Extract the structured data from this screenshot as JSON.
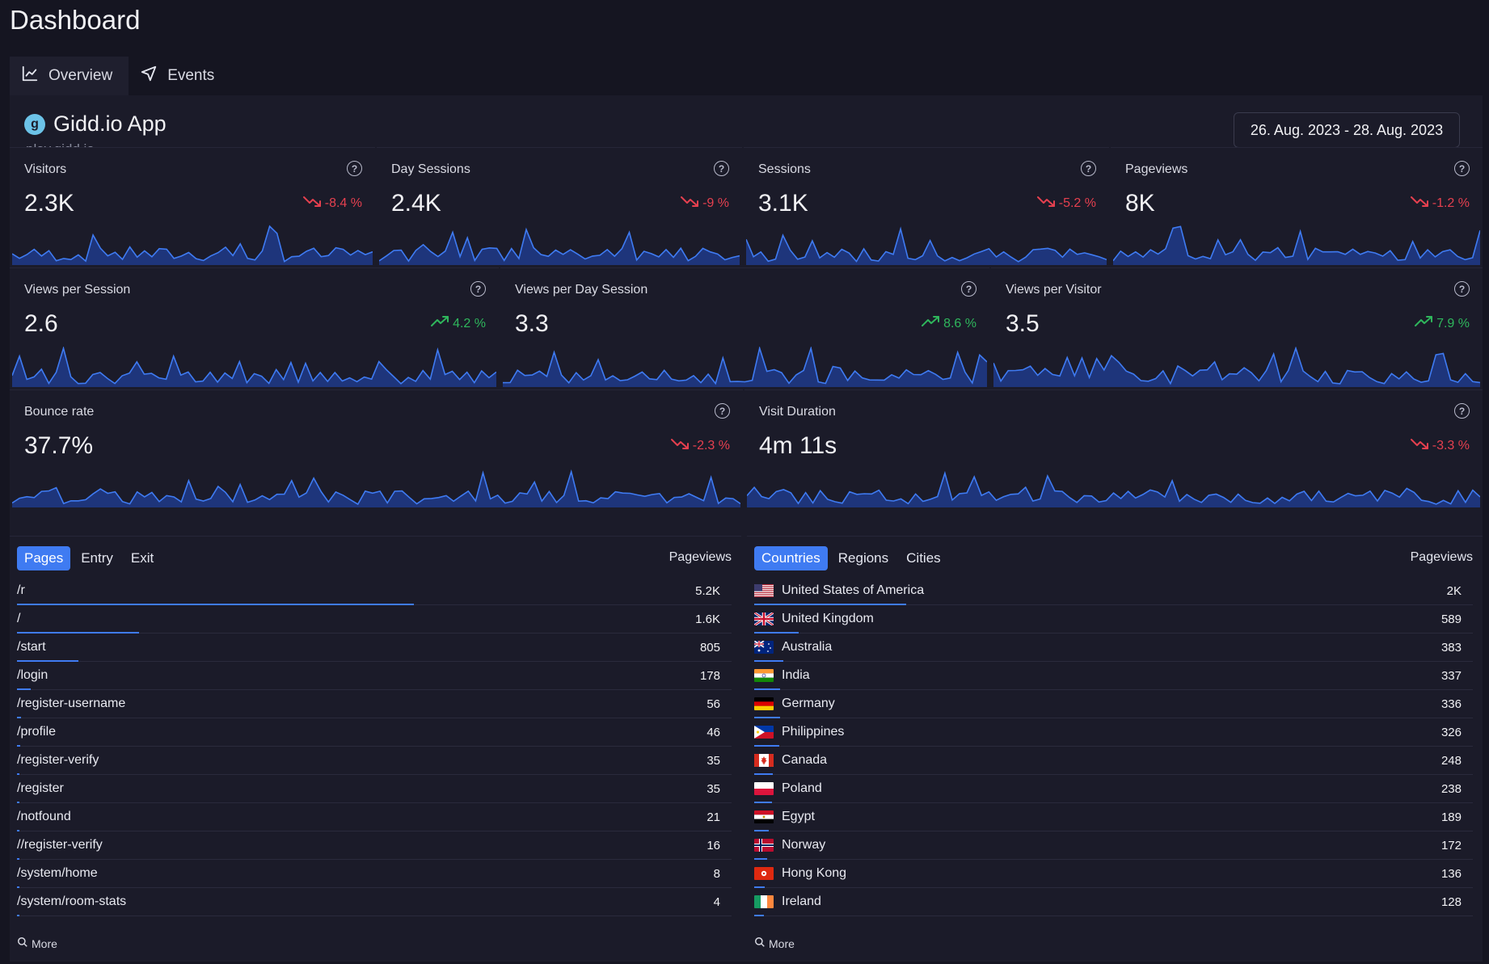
{
  "page": {
    "title": "Dashboard"
  },
  "tabs": [
    {
      "label": "Overview",
      "icon": "line-chart-icon",
      "active": true
    },
    {
      "label": "Events",
      "icon": "send-icon",
      "active": false
    }
  ],
  "app": {
    "name": "Gidd.io App",
    "domain": "play.gidd.io",
    "date_range": "26. Aug. 2023 - 28. Aug. 2023"
  },
  "colors": {
    "accent": "#3f7bf2",
    "down": "#e5404f",
    "up": "#2fb65c",
    "background": "#151521",
    "panel": "#1b1b29",
    "spark_fill": "#1e3a8a"
  },
  "stats": [
    {
      "label": "Visitors",
      "value": "2.3K",
      "change": "-8.4 %",
      "direction": "down"
    },
    {
      "label": "Day Sessions",
      "value": "2.4K",
      "change": "-9 %",
      "direction": "down"
    },
    {
      "label": "Sessions",
      "value": "3.1K",
      "change": "-5.2 %",
      "direction": "down"
    },
    {
      "label": "Pageviews",
      "value": "8K",
      "change": "-1.2 %",
      "direction": "down"
    },
    {
      "label": "Views per Session",
      "value": "2.6",
      "change": "4.2 %",
      "direction": "up"
    },
    {
      "label": "Views per Day Session",
      "value": "3.3",
      "change": "8.6 %",
      "direction": "up"
    },
    {
      "label": "Views per Visitor",
      "value": "3.5",
      "change": "7.9 %",
      "direction": "up"
    },
    {
      "label": "Bounce rate",
      "value": "37.7%",
      "change": "-2.3 %",
      "direction": "down"
    },
    {
      "label": "Visit Duration",
      "value": "4m 11s",
      "change": "-3.3 %",
      "direction": "down"
    }
  ],
  "pages_panel": {
    "tabs": [
      "Pages",
      "Entry",
      "Exit"
    ],
    "active_tab": "Pages",
    "column_header": "Pageviews",
    "more_label": "More",
    "rows": [
      {
        "name": "/r",
        "count": "5.2K",
        "value": 5200
      },
      {
        "name": "/",
        "count": "1.6K",
        "value": 1600
      },
      {
        "name": "/start",
        "count": "805",
        "value": 805
      },
      {
        "name": "/login",
        "count": "178",
        "value": 178
      },
      {
        "name": "/register-username",
        "count": "56",
        "value": 56
      },
      {
        "name": "/profile",
        "count": "46",
        "value": 46
      },
      {
        "name": "/register-verify",
        "count": "35",
        "value": 35
      },
      {
        "name": "/register",
        "count": "35",
        "value": 35
      },
      {
        "name": "/notfound",
        "count": "21",
        "value": 21
      },
      {
        "name": "//register-verify",
        "count": "16",
        "value": 16
      },
      {
        "name": "/system/home",
        "count": "8",
        "value": 8
      },
      {
        "name": "/system/room-stats",
        "count": "4",
        "value": 4
      }
    ]
  },
  "countries_panel": {
    "tabs": [
      "Countries",
      "Regions",
      "Cities"
    ],
    "active_tab": "Countries",
    "column_header": "Pageviews",
    "more_label": "More",
    "rows": [
      {
        "name": "United States of America",
        "count": "2K",
        "value": 2000,
        "flag": "us"
      },
      {
        "name": "United Kingdom",
        "count": "589",
        "value": 589,
        "flag": "gb"
      },
      {
        "name": "Australia",
        "count": "383",
        "value": 383,
        "flag": "au"
      },
      {
        "name": "India",
        "count": "337",
        "value": 337,
        "flag": "in"
      },
      {
        "name": "Germany",
        "count": "336",
        "value": 336,
        "flag": "de"
      },
      {
        "name": "Philippines",
        "count": "326",
        "value": 326,
        "flag": "ph"
      },
      {
        "name": "Canada",
        "count": "248",
        "value": 248,
        "flag": "ca"
      },
      {
        "name": "Poland",
        "count": "238",
        "value": 238,
        "flag": "pl"
      },
      {
        "name": "Egypt",
        "count": "189",
        "value": 189,
        "flag": "eg"
      },
      {
        "name": "Norway",
        "count": "172",
        "value": 172,
        "flag": "no"
      },
      {
        "name": "Hong Kong",
        "count": "136",
        "value": 136,
        "flag": "hk"
      },
      {
        "name": "Ireland",
        "count": "128",
        "value": 128,
        "flag": "ie"
      }
    ]
  }
}
